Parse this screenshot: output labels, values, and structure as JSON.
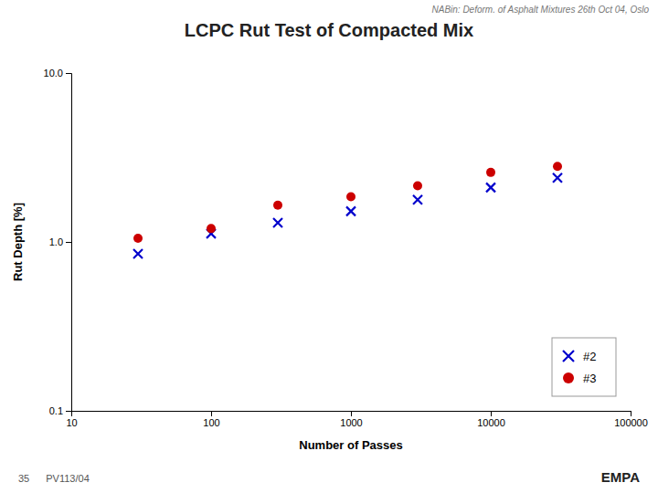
{
  "chart_data": {
    "type": "scatter",
    "title": "LCPC Rut Test of Compacted Mix",
    "subtitle": "NABin: Deform. of Asphalt Mixtures 26th Oct 04, Oslo",
    "x_label": "Number of Passes",
    "y_label": "Rut Depth [%]",
    "series": [
      {
        "name": "#2",
        "color": "#0000CC",
        "marker": "x",
        "x": [
          30,
          100,
          300,
          1000,
          3000,
          10000,
          30000
        ],
        "values": [
          0.85,
          1.12,
          1.3,
          1.52,
          1.78,
          2.1,
          2.4
        ]
      },
      {
        "name": "#3",
        "color": "#CC0000",
        "marker": "o",
        "x": [
          30,
          100,
          300,
          1000,
          3000,
          10000,
          30000
        ],
        "values": [
          1.05,
          1.2,
          1.65,
          1.85,
          2.15,
          2.58,
          2.8
        ]
      }
    ],
    "log": true,
    "xlim": [
      10,
      100000
    ],
    "ylim": [
      0.1,
      10.0
    ],
    "xticks": [
      10,
      100,
      1000,
      10000,
      100000
    ],
    "yticks": [
      0.1,
      {
        "value": 1.0,
        "label": "1.0"
      },
      {
        "value": 10.0,
        "label": "10.0"
      }
    ],
    "grid": false,
    "legend": "lower right",
    "annotations": [
      "35",
      "PV113/04",
      "EMPA"
    ]
  }
}
